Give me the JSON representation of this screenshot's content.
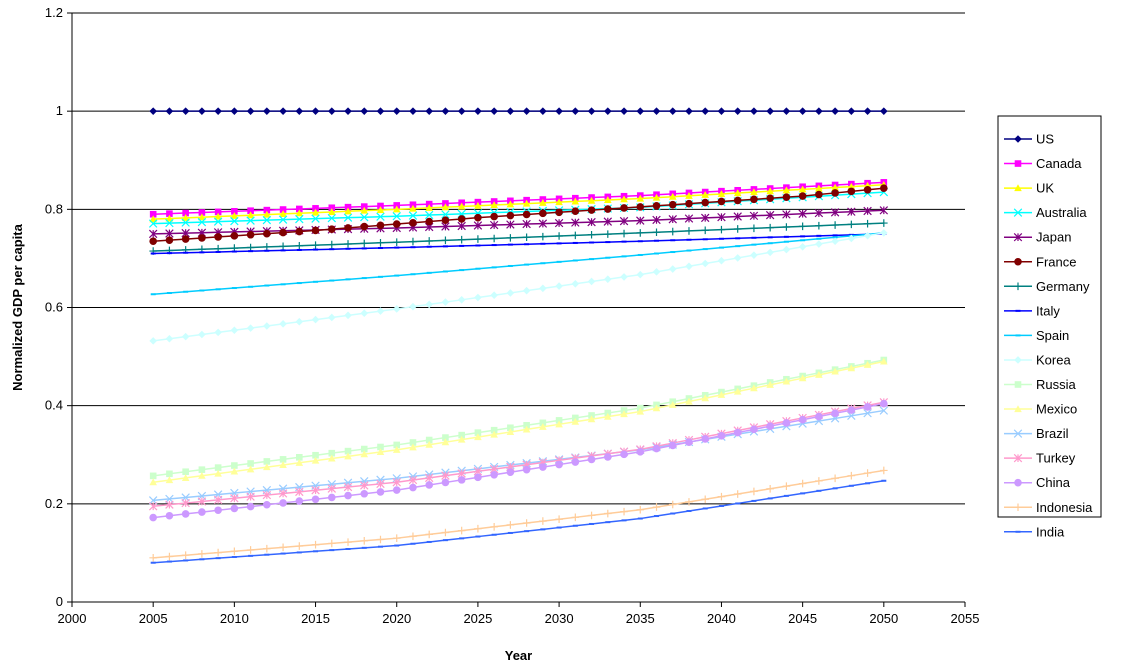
{
  "chart_data": {
    "type": "line",
    "title": "",
    "xlabel": "Year",
    "ylabel": "Normalized GDP per capita",
    "xlim": [
      2000,
      2055
    ],
    "ylim": [
      0,
      1.2
    ],
    "x_ticks": [
      "2000",
      "2005",
      "2010",
      "2015",
      "2020",
      "2025",
      "2030",
      "2035",
      "2040",
      "2045",
      "2050",
      "2055"
    ],
    "y_ticks": [
      "0",
      "0.2",
      "0.4",
      "0.6",
      "0.8",
      "1",
      "1.2"
    ],
    "grid": "horizontal",
    "legend": "right",
    "x_start": 2005,
    "x_end": 2050,
    "series": [
      {
        "name": "US",
        "color": "#000080",
        "marker": "diamond",
        "points": [
          [
            2005,
            1.0
          ],
          [
            2050,
            1.0
          ]
        ]
      },
      {
        "name": "Canada",
        "color": "#FF00FF",
        "marker": "square",
        "points": [
          [
            2005,
            0.79
          ],
          [
            2020,
            0.808
          ],
          [
            2035,
            0.828
          ],
          [
            2050,
            0.855
          ]
        ]
      },
      {
        "name": "UK",
        "color": "#FFFF00",
        "marker": "triangle",
        "points": [
          [
            2005,
            0.78
          ],
          [
            2020,
            0.8
          ],
          [
            2035,
            0.822
          ],
          [
            2050,
            0.85
          ]
        ]
      },
      {
        "name": "Australia",
        "color": "#00FFFF",
        "marker": "x",
        "points": [
          [
            2005,
            0.771
          ],
          [
            2020,
            0.786
          ],
          [
            2035,
            0.804
          ],
          [
            2050,
            0.835
          ]
        ]
      },
      {
        "name": "Japan",
        "color": "#800080",
        "marker": "star",
        "points": [
          [
            2005,
            0.75
          ],
          [
            2020,
            0.762
          ],
          [
            2035,
            0.777
          ],
          [
            2050,
            0.798
          ]
        ]
      },
      {
        "name": "France",
        "color": "#800000",
        "marker": "circle",
        "points": [
          [
            2005,
            0.735
          ],
          [
            2015,
            0.757
          ],
          [
            2025,
            0.783
          ],
          [
            2035,
            0.805
          ],
          [
            2045,
            0.827
          ],
          [
            2050,
            0.843
          ]
        ]
      },
      {
        "name": "Germany",
        "color": "#008080",
        "marker": "plus",
        "points": [
          [
            2005,
            0.715
          ],
          [
            2020,
            0.733
          ],
          [
            2035,
            0.752
          ],
          [
            2050,
            0.772
          ]
        ]
      },
      {
        "name": "Italy",
        "color": "#0000FF",
        "marker": "dash",
        "points": [
          [
            2005,
            0.71
          ],
          [
            2020,
            0.722
          ],
          [
            2035,
            0.735
          ],
          [
            2050,
            0.75
          ]
        ]
      },
      {
        "name": "Spain",
        "color": "#00CCFF",
        "marker": "dash",
        "points": [
          [
            2005,
            0.627
          ],
          [
            2020,
            0.665
          ],
          [
            2035,
            0.707
          ],
          [
            2050,
            0.752
          ]
        ]
      },
      {
        "name": "Korea",
        "color": "#CCFFFF",
        "marker": "diamond",
        "points": [
          [
            2005,
            0.532
          ],
          [
            2020,
            0.597
          ],
          [
            2035,
            0.667
          ],
          [
            2050,
            0.752
          ]
        ]
      },
      {
        "name": "Russia",
        "color": "#CCFFCC",
        "marker": "square",
        "points": [
          [
            2005,
            0.257
          ],
          [
            2020,
            0.32
          ],
          [
            2035,
            0.395
          ],
          [
            2050,
            0.493
          ]
        ]
      },
      {
        "name": "Mexico",
        "color": "#FFFF99",
        "marker": "triangle",
        "points": [
          [
            2005,
            0.244
          ],
          [
            2020,
            0.31
          ],
          [
            2035,
            0.388
          ],
          [
            2050,
            0.49
          ]
        ]
      },
      {
        "name": "Brazil",
        "color": "#99CCFF",
        "marker": "x",
        "points": [
          [
            2005,
            0.207
          ],
          [
            2020,
            0.252
          ],
          [
            2035,
            0.31
          ],
          [
            2050,
            0.39
          ]
        ]
      },
      {
        "name": "Turkey",
        "color": "#FF99CC",
        "marker": "star",
        "points": [
          [
            2005,
            0.195
          ],
          [
            2020,
            0.244
          ],
          [
            2035,
            0.311
          ],
          [
            2050,
            0.407
          ]
        ]
      },
      {
        "name": "China",
        "color": "#CC99FF",
        "marker": "circle",
        "points": [
          [
            2005,
            0.172
          ],
          [
            2020,
            0.228
          ],
          [
            2035,
            0.306
          ],
          [
            2050,
            0.404
          ]
        ]
      },
      {
        "name": "Indonesia",
        "color": "#FFCC99",
        "marker": "plus",
        "points": [
          [
            2005,
            0.09
          ],
          [
            2020,
            0.13
          ],
          [
            2035,
            0.188
          ],
          [
            2050,
            0.268
          ]
        ]
      },
      {
        "name": "India",
        "color": "#3366FF",
        "marker": "dash",
        "points": [
          [
            2005,
            0.08
          ],
          [
            2020,
            0.115
          ],
          [
            2035,
            0.17
          ],
          [
            2050,
            0.247
          ]
        ]
      }
    ]
  }
}
